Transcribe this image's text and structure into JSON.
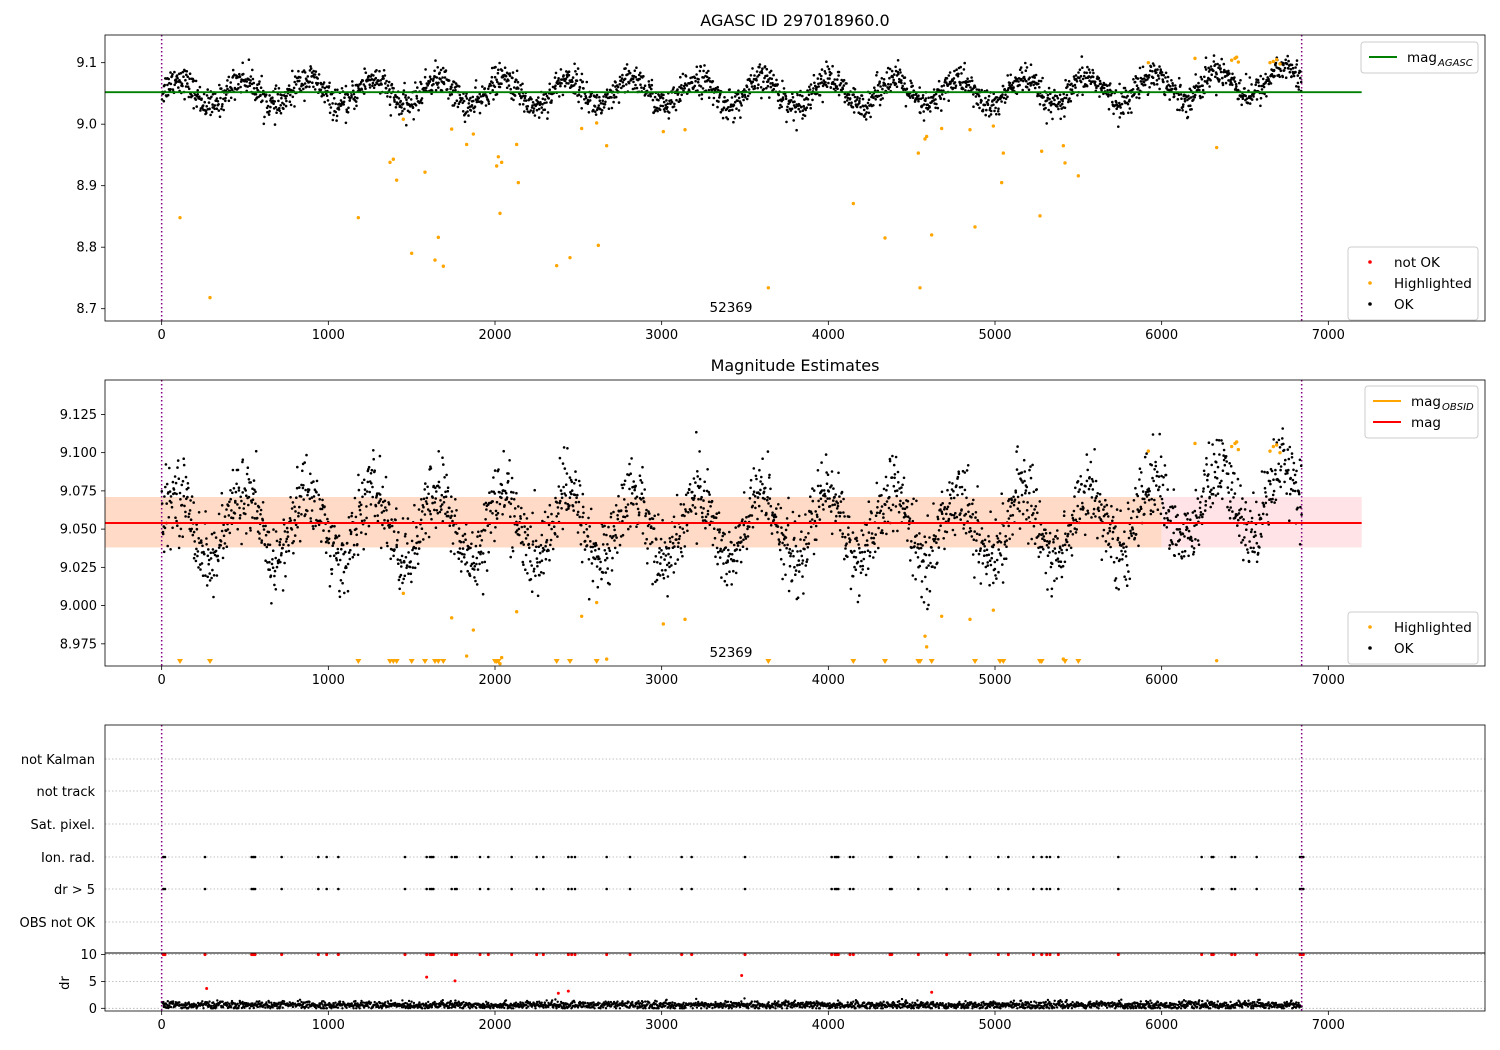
{
  "chart_data": [
    {
      "type": "scatter",
      "title": "AGASC ID 297018960.0",
      "annotation": "52369",
      "xlim": [
        -340,
        7940
      ],
      "ylim": [
        8.68,
        9.145
      ],
      "xticks": [
        0,
        1000,
        2000,
        3000,
        4000,
        5000,
        6000,
        7000
      ],
      "yticks": [
        8.7,
        8.8,
        8.9,
        9.0,
        9.1
      ],
      "ytick_labels": [
        "8.7",
        "8.8",
        "8.9",
        "9.0",
        "9.1"
      ],
      "obs_boundaries": [
        0,
        6840
      ],
      "legend_top": [
        {
          "label": "mag",
          "sub": "AGASC",
          "color": "#008000",
          "kind": "line"
        }
      ],
      "legend_bottom": [
        {
          "label": "not OK",
          "color": "#ff0000",
          "kind": "dot"
        },
        {
          "label": "Highlighted",
          "color": "#ffa500",
          "kind": "dot"
        },
        {
          "label": "OK",
          "color": "#000000",
          "kind": "dot"
        }
      ],
      "mag_agasc": 9.052,
      "ok_series": {
        "color": "#000000",
        "x_range": [
          0,
          6840
        ],
        "baseline": 9.052,
        "trend_end": 9.074,
        "amplitude": 0.022,
        "period": 390,
        "noise": 0.012
      },
      "highlighted": {
        "color": "#ffa500",
        "x": [
          110,
          290,
          1180,
          1370,
          1390,
          1410,
          1450,
          1500,
          1580,
          1640,
          1660,
          1690,
          1740,
          1830,
          1870,
          2010,
          2020,
          2030,
          2040,
          2130,
          2140,
          2370,
          2450,
          2520,
          2610,
          2620,
          2670,
          3010,
          3140,
          3640,
          4150,
          4340,
          4540,
          4550,
          4580,
          4590,
          4620,
          4680,
          4850,
          4880,
          4990,
          5040,
          5050,
          5270,
          5280,
          5410,
          5420,
          5500,
          5920,
          6200,
          6330,
          6420,
          6440,
          6450,
          6460,
          6650,
          6670,
          6690,
          6710
        ],
        "y": [
          8.848,
          8.718,
          8.848,
          8.938,
          8.943,
          8.909,
          9.008,
          8.79,
          8.922,
          8.779,
          8.816,
          8.769,
          8.992,
          8.967,
          8.984,
          8.932,
          8.947,
          8.855,
          8.938,
          8.967,
          8.905,
          8.77,
          8.783,
          8.993,
          9.002,
          8.803,
          8.965,
          8.988,
          8.991,
          8.734,
          8.871,
          8.815,
          8.953,
          8.734,
          8.976,
          8.98,
          8.82,
          8.993,
          8.991,
          8.833,
          8.997,
          8.905,
          8.953,
          8.851,
          8.956,
          8.965,
          8.937,
          8.916,
          9.1,
          9.107,
          8.962,
          9.104,
          9.107,
          9.109,
          9.101,
          9.1,
          9.102,
          9.105,
          9.098
        ]
      }
    },
    {
      "type": "scatter",
      "title": "Magnitude Estimates",
      "annotation": "52369",
      "xlim": [
        -340,
        7940
      ],
      "ylim": [
        8.9605,
        9.1475
      ],
      "xticks": [
        0,
        1000,
        2000,
        3000,
        4000,
        5000,
        6000,
        7000
      ],
      "yticks": [
        8.975,
        9.0,
        9.025,
        9.05,
        9.075,
        9.1,
        9.125
      ],
      "ytick_labels": [
        "8.975",
        "9.000",
        "9.025",
        "9.050",
        "9.075",
        "9.100",
        "9.125"
      ],
      "obs_boundaries": [
        0,
        6840
      ],
      "legend_top": [
        {
          "label": "mag",
          "sub": "OBSID",
          "color": "#ffa500",
          "kind": "line"
        },
        {
          "label": "mag",
          "sub": "",
          "color": "#ff0000",
          "kind": "line"
        }
      ],
      "legend_bottom": [
        {
          "label": "Highlighted",
          "color": "#ffa500",
          "kind": "dot"
        },
        {
          "label": "OK",
          "color": "#000000",
          "kind": "dot"
        }
      ],
      "mag": 9.054,
      "mag_band": [
        9.038,
        9.071
      ],
      "band_split_x": 6000,
      "ok_series": {
        "color": "#000000",
        "x_range": [
          0,
          6840
        ],
        "baseline": 9.052,
        "trend_end": 9.074,
        "amplitude": 0.022,
        "period": 390,
        "noise": 0.012
      },
      "highlighted": {
        "color": "#ffa500",
        "x": [
          1450,
          1740,
          1830,
          1870,
          2030,
          2040,
          2130,
          2520,
          2610,
          2670,
          3010,
          3140,
          4580,
          4590,
          4680,
          4850,
          4990,
          5410,
          5920,
          6200,
          6330,
          6420,
          6440,
          6450,
          6460,
          6650,
          6670,
          6690,
          6710
        ],
        "y": [
          9.008,
          8.992,
          8.967,
          8.984,
          8.962,
          8.966,
          8.996,
          8.993,
          9.002,
          8.965,
          8.988,
          8.991,
          8.98,
          8.973,
          8.993,
          8.991,
          8.997,
          8.965,
          9.101,
          9.106,
          8.964,
          9.104,
          9.106,
          9.107,
          9.102,
          9.101,
          9.104,
          9.105,
          9.1
        ]
      },
      "below_limit_x": [
        110,
        290,
        1180,
        1370,
        1390,
        1410,
        1500,
        1580,
        1640,
        1660,
        1690,
        2000,
        2010,
        2020,
        2370,
        2450,
        2610,
        3640,
        4150,
        4340,
        4540,
        4550,
        4620,
        4880,
        5030,
        5050,
        5270,
        5280,
        5420,
        5500
      ]
    },
    {
      "type": "scatter",
      "title": "",
      "xlim": [
        -340,
        7940
      ],
      "xticks": [
        0,
        1000,
        2000,
        3000,
        4000,
        5000,
        6000,
        7000
      ],
      "flag_labels": [
        "not Kalman",
        "not track",
        "Sat. pixel.",
        "Ion. rad.",
        "dr > 5",
        "OBS not OK"
      ],
      "obs_boundaries": [
        0,
        6840
      ],
      "flag_x": [
        10,
        20,
        260,
        540,
        550,
        560,
        720,
        940,
        990,
        1060,
        1460,
        1590,
        1610,
        1620,
        1630,
        1740,
        1760,
        1770,
        1910,
        1960,
        2100,
        2250,
        2290,
        2440,
        2460,
        2480,
        2670,
        2810,
        3120,
        3180,
        3500,
        4020,
        4040,
        4050,
        4060,
        4130,
        4150,
        4370,
        4380,
        4540,
        4710,
        4850,
        5020,
        5080,
        5230,
        5280,
        5310,
        5330,
        5380,
        5740,
        6240,
        6300,
        6310,
        6420,
        6440,
        6570,
        6830,
        6840,
        6850
      ],
      "dr_ylabel": "dr",
      "dr_ylim": [
        -0.5,
        10.3
      ],
      "dr_yticks": [
        0,
        5,
        10
      ],
      "dr_scatter": {
        "color": "#000000",
        "x_range": [
          0,
          6840
        ],
        "baseline": 0.6,
        "noise": 0.35
      },
      "dr_outliers": {
        "color": "#ff0000",
        "x": [
          270,
          1590,
          1760,
          2380,
          2440,
          3480,
          4620
        ],
        "y": [
          3.7,
          5.8,
          5.1,
          2.8,
          3.2,
          6.1,
          3.0
        ]
      }
    }
  ]
}
